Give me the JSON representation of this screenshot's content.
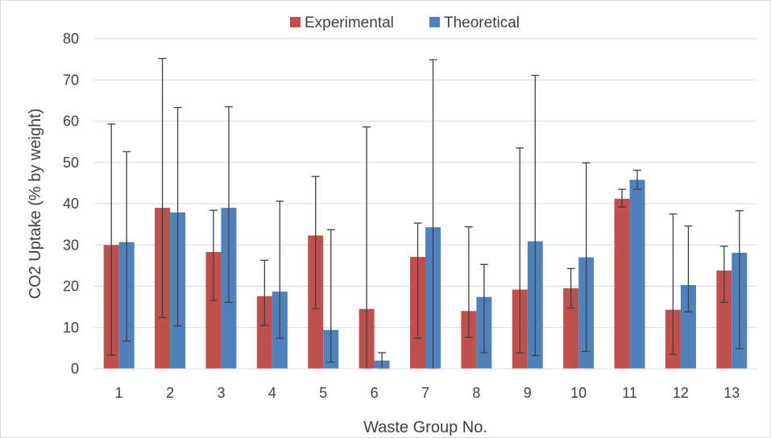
{
  "chart_data": {
    "type": "bar",
    "title": "",
    "xlabel": "Waste Group No.",
    "ylabel": "CO2 Uptake (% by weight)",
    "ylim": [
      0,
      80
    ],
    "yticks": [
      0,
      10,
      20,
      30,
      40,
      50,
      60,
      70,
      80
    ],
    "grid": "horizontal",
    "legend_position": "top-center",
    "categories": [
      "1",
      "2",
      "3",
      "4",
      "5",
      "6",
      "7",
      "8",
      "9",
      "10",
      "11",
      "12",
      "13"
    ],
    "series": [
      {
        "name": "Experimental",
        "color": "#C0504D",
        "values": [
          30.0,
          39.0,
          28.3,
          17.6,
          32.3,
          14.5,
          27.1,
          14.0,
          19.2,
          19.5,
          41.2,
          14.3,
          23.8
        ],
        "error_low": [
          3.3,
          12.4,
          16.6,
          10.5,
          14.6,
          0.0,
          7.4,
          7.6,
          3.8,
          14.7,
          39.2,
          3.5,
          16.1
        ],
        "error_high": [
          59.3,
          75.2,
          38.4,
          26.3,
          46.6,
          58.6,
          35.3,
          34.4,
          53.5,
          24.3,
          43.5,
          37.5,
          29.7
        ]
      },
      {
        "name": "Theoretical",
        "color": "#4F81BD",
        "values": [
          30.7,
          37.9,
          39.0,
          18.7,
          9.4,
          2.0,
          34.3,
          17.4,
          30.9,
          27.0,
          45.8,
          20.3,
          28.1
        ],
        "error_low": [
          6.7,
          10.4,
          16.1,
          7.4,
          1.6,
          0.0,
          0.0,
          3.9,
          3.2,
          4.2,
          43.5,
          13.8,
          4.9
        ],
        "error_high": [
          52.6,
          63.3,
          63.5,
          40.6,
          33.7,
          3.9,
          74.9,
          25.3,
          71.1,
          49.9,
          48.1,
          34.6,
          38.3
        ]
      }
    ]
  }
}
